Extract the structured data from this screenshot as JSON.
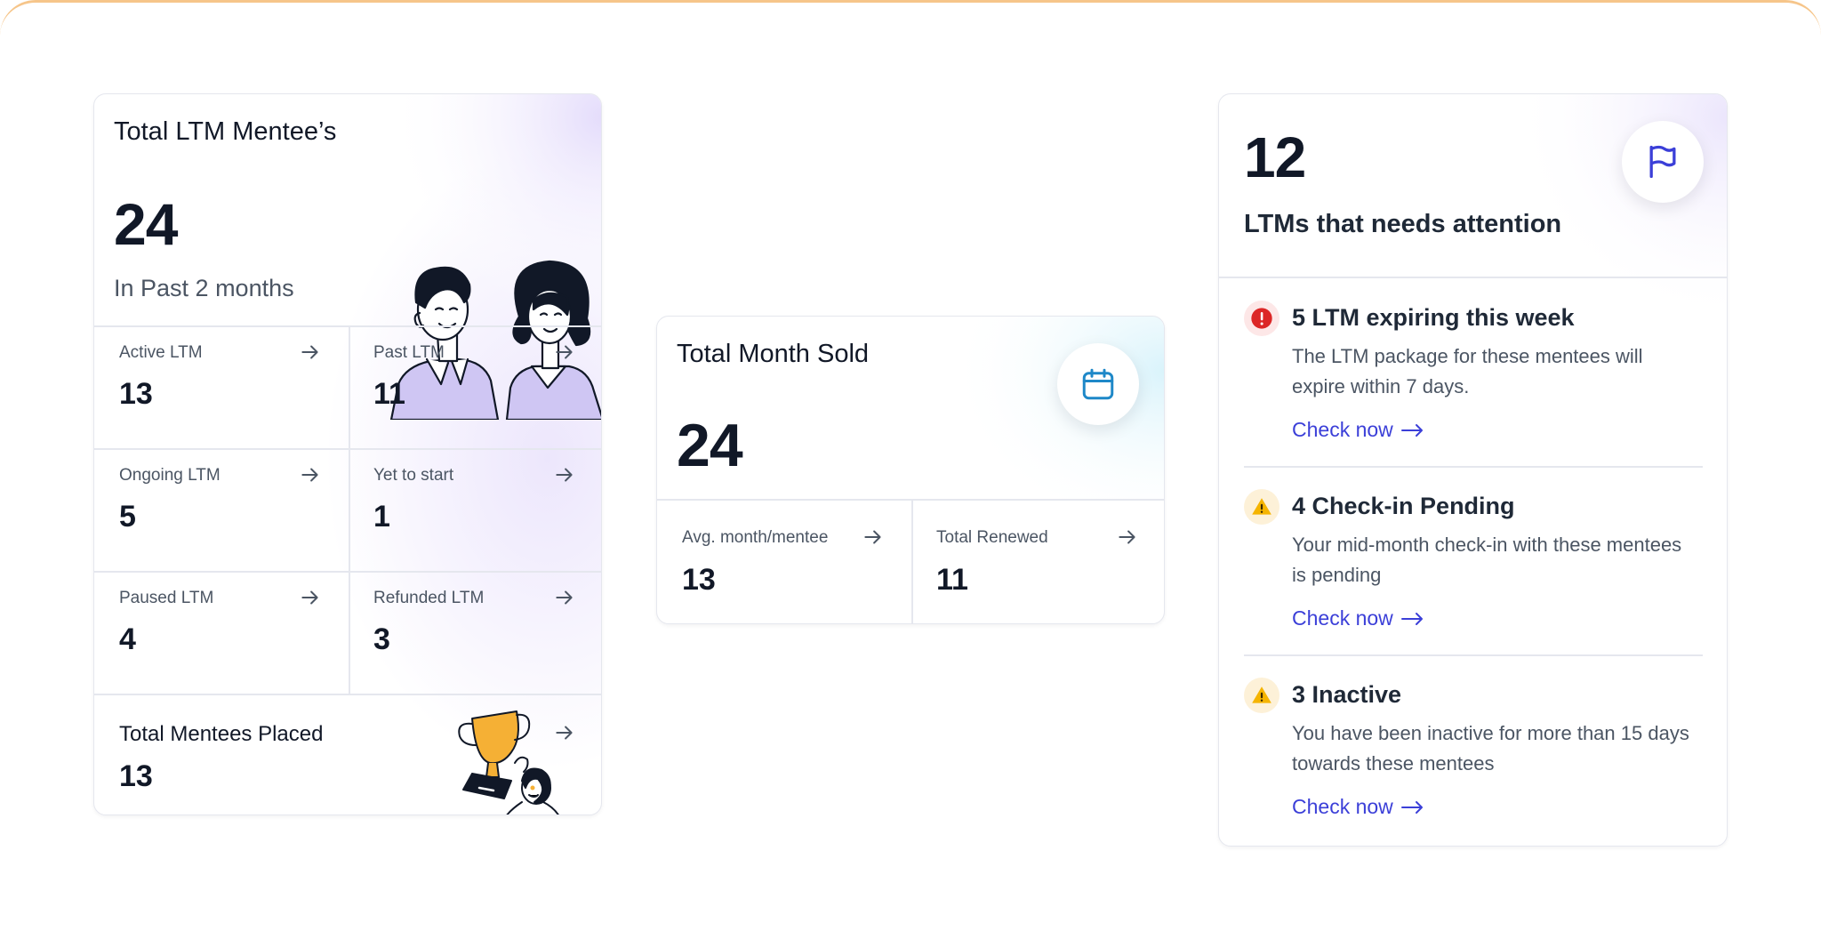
{
  "mentees_card": {
    "title": "Total LTM Mentee’s",
    "total": "24",
    "period": "In Past 2 months",
    "stats": [
      {
        "label": "Active LTM",
        "value": "13"
      },
      {
        "label": "Past LTM",
        "value": "11"
      },
      {
        "label": "Ongoing LTM",
        "value": "5"
      },
      {
        "label": "Yet to start",
        "value": "1"
      },
      {
        "label": "Paused LTM",
        "value": "4"
      },
      {
        "label": "Refunded LTM",
        "value": "3"
      }
    ],
    "placed": {
      "label": "Total Mentees Placed",
      "value": "13"
    }
  },
  "months_card": {
    "title": "Total Month Sold",
    "total": "24",
    "stats": [
      {
        "label": "Avg. month/mentee",
        "value": "13"
      },
      {
        "label": "Total Renewed",
        "value": "11"
      }
    ]
  },
  "attention_card": {
    "count": "12",
    "subtitle": "LTMs that needs attention",
    "items": [
      {
        "title": "5 LTM expiring this week",
        "desc": "The LTM package for these mentees will expire within 7 days.",
        "link": "Check now",
        "severity": "error"
      },
      {
        "title": "4 Check-in Pending",
        "desc": "Your mid-month check-in with these mentees is pending",
        "link": "Check now",
        "severity": "warning"
      },
      {
        "title": "3 Inactive",
        "desc": "You have been inactive for more than 15 days towards these mentees",
        "link": "Check now",
        "severity": "warning"
      }
    ]
  },
  "colors": {
    "accent": "#3b3fd8",
    "error": "#dc2626",
    "warning": "#f5b400",
    "calendar": "#1e88c8"
  },
  "icons": {
    "arrow": "arrow-right-icon",
    "calendar": "calendar-icon",
    "flag": "flag-icon",
    "trophy": "trophy-icon"
  }
}
